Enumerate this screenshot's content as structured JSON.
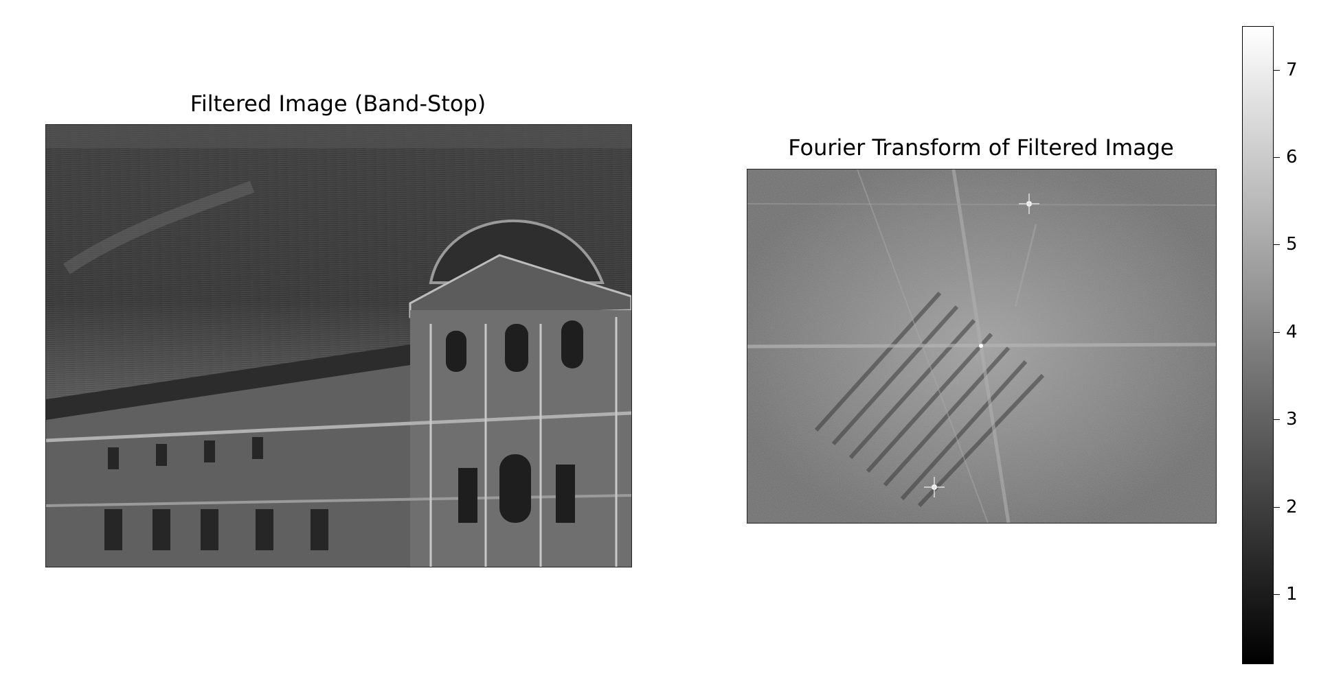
{
  "chart_data": [
    {
      "type": "image",
      "title": "Filtered Image (Band-Stop)",
      "colormap": "gray"
    },
    {
      "type": "heatmap",
      "title": "Fourier Transform of Filtered Image",
      "colormap": "gray",
      "colorbar": {
        "ticks": [
          1,
          2,
          3,
          4,
          5,
          6,
          7
        ],
        "range": [
          0.2,
          7.5
        ]
      }
    }
  ],
  "colors": {
    "background": "#ffffff",
    "axis": "#000000"
  }
}
